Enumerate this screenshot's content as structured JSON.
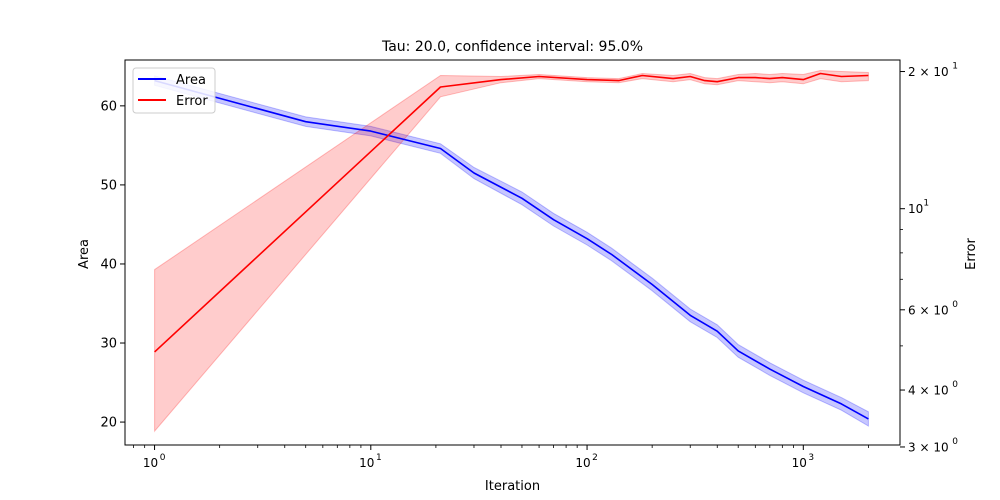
{
  "chart_data": {
    "type": "line",
    "title": "Tau: 20.0, confidence interval: 95.0%",
    "xlabel": "Iteration",
    "ylabel": "Area",
    "y2label": "Error",
    "x_scale": "log",
    "xlim": [
      0.73,
      2800
    ],
    "ylim": [
      17.1,
      65.8
    ],
    "y2_scale": "log",
    "y2lim": [
      3.03,
      21.2
    ],
    "grid": false,
    "legend_position": "top-left",
    "x_ticks": [
      {
        "value": 1,
        "base": "10",
        "exp": "0"
      },
      {
        "value": 10,
        "base": "10",
        "exp": "1"
      },
      {
        "value": 100,
        "base": "10",
        "exp": "2"
      },
      {
        "value": 1000,
        "base": "10",
        "exp": "3"
      }
    ],
    "y_ticks": [
      "20",
      "30",
      "40",
      "50",
      "60"
    ],
    "y2_ticks": [
      {
        "value": 20,
        "mant": "2 × 10",
        "exp": "1"
      },
      {
        "value": 10,
        "mant": "10",
        "exp": "1"
      },
      {
        "value": 6,
        "mant": "6 × 10",
        "exp": "0"
      },
      {
        "value": 4,
        "mant": "4 × 10",
        "exp": "0"
      },
      {
        "value": 3,
        "mant": "3 × 10",
        "exp": "0"
      }
    ],
    "y2_minor_ticks": [
      5,
      7,
      8,
      9
    ],
    "series": [
      {
        "name": "Area",
        "axis": "left",
        "color": "#0000ff",
        "band_color": "#0000ff",
        "x": [
          1,
          5,
          10,
          21,
          30,
          50,
          70,
          100,
          130,
          200,
          300,
          400,
          500,
          700,
          1000,
          1500,
          2000
        ],
        "y": [
          63.2,
          58.0,
          56.8,
          54.6,
          51.5,
          48.3,
          45.6,
          43.2,
          41.2,
          37.4,
          33.5,
          31.5,
          29.0,
          26.7,
          24.5,
          22.3,
          20.4
        ],
        "upper": [
          63.8,
          58.6,
          57.4,
          55.2,
          52.2,
          49.1,
          46.4,
          44.0,
          42.0,
          38.2,
          34.3,
          32.3,
          29.8,
          27.5,
          25.3,
          23.1,
          21.3
        ],
        "lower": [
          62.6,
          57.4,
          56.2,
          54.0,
          50.8,
          47.5,
          44.8,
          42.4,
          40.4,
          36.6,
          32.7,
          30.7,
          28.2,
          25.9,
          23.7,
          21.5,
          19.5
        ]
      },
      {
        "name": "Error",
        "axis": "right",
        "color": "#ff0000",
        "band_color": "#ff0000",
        "x": [
          1,
          21,
          40,
          60,
          100,
          140,
          180,
          250,
          300,
          350,
          400,
          500,
          600,
          700,
          800,
          1000,
          1200,
          1500,
          2000
        ],
        "y": [
          4.85,
          18.5,
          19.2,
          19.5,
          19.2,
          19.1,
          19.6,
          19.3,
          19.5,
          19.1,
          19.0,
          19.4,
          19.4,
          19.3,
          19.4,
          19.2,
          19.8,
          19.5,
          19.6
        ],
        "upper": [
          7.35,
          19.6,
          19.5,
          19.7,
          19.4,
          19.3,
          19.8,
          19.6,
          19.8,
          19.4,
          19.3,
          19.7,
          19.8,
          19.7,
          19.8,
          19.7,
          20.1,
          20.0,
          19.9
        ],
        "lower": [
          3.25,
          17.6,
          18.9,
          19.3,
          19.0,
          18.9,
          19.3,
          19.0,
          19.2,
          18.8,
          18.7,
          19.1,
          19.0,
          18.9,
          19.0,
          18.8,
          19.3,
          19.0,
          19.1
        ]
      }
    ]
  }
}
